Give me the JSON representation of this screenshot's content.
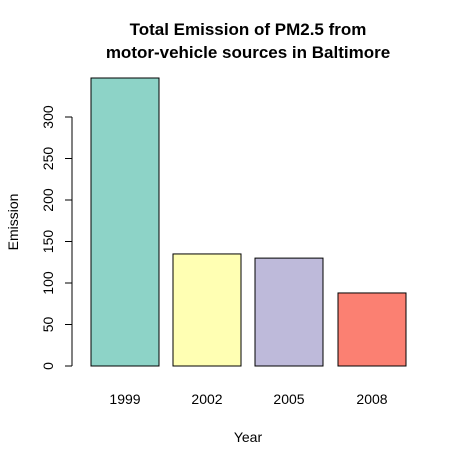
{
  "chart_data": {
    "type": "bar",
    "title_lines": [
      "Total Emission of PM2.5 from",
      "motor-vehicle sources in Baltimore"
    ],
    "xlabel": "Year",
    "ylabel": "Emission",
    "categories": [
      "1999",
      "2002",
      "2005",
      "2008"
    ],
    "values": [
      347,
      135,
      130,
      88
    ],
    "colors": [
      "#8DD3C7",
      "#FFFFB3",
      "#BEBADA",
      "#FB8072"
    ],
    "ylim": [
      0,
      347
    ],
    "yticks": [
      0,
      50,
      100,
      150,
      200,
      250,
      300
    ],
    "grid": false,
    "legend": "none"
  }
}
